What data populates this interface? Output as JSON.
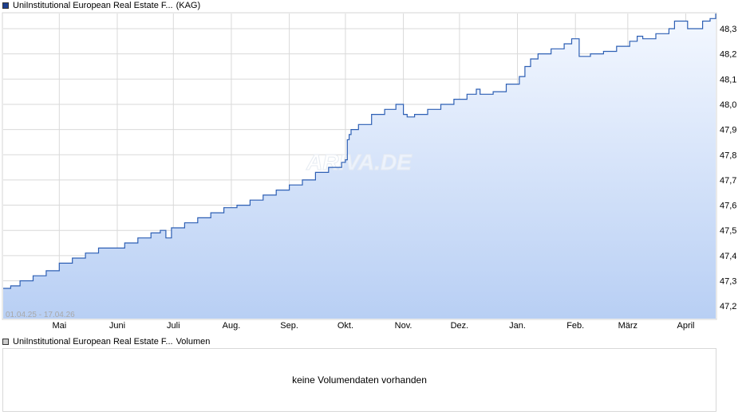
{
  "header": {
    "instrument_name": "UniInstitutional European Real Estate F...",
    "instrument_suffix": "(KAG)",
    "swatch_color": "#1d3f8f"
  },
  "volume_panel": {
    "instrument_name": "UniInstitutional European Real Estate F...",
    "label": "Volumen",
    "swatch_color": "#cccccc",
    "message": "keine Volumendaten vorhanden"
  },
  "watermark": "ARIVA.DE",
  "date_range_label": "01.04.25 - 17.04.26",
  "colors": {
    "line": "#2d5fb4",
    "fill_top": "#f4f8ff",
    "fill_bottom": "#b8cff4",
    "grid": "#d9d9d9"
  },
  "chart_data": {
    "type": "area",
    "grid": true,
    "x_range": [
      "2025-04-01",
      "2026-04-17"
    ],
    "ylim": [
      47.15,
      48.36
    ],
    "y_ticks": [
      47.2,
      47.3,
      47.4,
      47.5,
      47.6,
      47.7,
      47.8,
      47.9,
      48.0,
      48.1,
      48.2,
      48.3
    ],
    "y_tick_labels": [
      "47,2",
      "47,3",
      "47,4",
      "47,5",
      "47,6",
      "47,7",
      "47,8",
      "47,9",
      "48,0",
      "48,1",
      "48,2",
      "48,3"
    ],
    "x_ticks": [
      {
        "date": "2025-05-01",
        "label": "Mai"
      },
      {
        "date": "2025-06-01",
        "label": "Juni"
      },
      {
        "date": "2025-07-01",
        "label": "Juli"
      },
      {
        "date": "2025-08-01",
        "label": "Aug."
      },
      {
        "date": "2025-09-01",
        "label": "Sep."
      },
      {
        "date": "2025-10-01",
        "label": "Okt."
      },
      {
        "date": "2025-11-01",
        "label": "Nov."
      },
      {
        "date": "2025-12-01",
        "label": "Dez."
      },
      {
        "date": "2026-01-01",
        "label": "Jan."
      },
      {
        "date": "2026-02-01",
        "label": "Feb."
      },
      {
        "date": "2026-03-01",
        "label": "März"
      },
      {
        "date": "2026-04-01",
        "label": "April"
      }
    ],
    "series": [
      {
        "points": [
          [
            "2025-04-01",
            47.27
          ],
          [
            "2025-04-05",
            47.28
          ],
          [
            "2025-04-10",
            47.3
          ],
          [
            "2025-04-17",
            47.32
          ],
          [
            "2025-04-24",
            47.34
          ],
          [
            "2025-05-01",
            47.37
          ],
          [
            "2025-05-08",
            47.39
          ],
          [
            "2025-05-15",
            47.41
          ],
          [
            "2025-05-22",
            47.43
          ],
          [
            "2025-05-29",
            47.43
          ],
          [
            "2025-06-05",
            47.45
          ],
          [
            "2025-06-12",
            47.47
          ],
          [
            "2025-06-19",
            47.49
          ],
          [
            "2025-06-24",
            47.5
          ],
          [
            "2025-06-27",
            47.47
          ],
          [
            "2025-06-30",
            47.51
          ],
          [
            "2025-07-07",
            47.53
          ],
          [
            "2025-07-14",
            47.55
          ],
          [
            "2025-07-21",
            47.57
          ],
          [
            "2025-07-28",
            47.59
          ],
          [
            "2025-08-04",
            47.6
          ],
          [
            "2025-08-11",
            47.62
          ],
          [
            "2025-08-18",
            47.64
          ],
          [
            "2025-08-25",
            47.66
          ],
          [
            "2025-09-01",
            47.68
          ],
          [
            "2025-09-08",
            47.7
          ],
          [
            "2025-09-15",
            47.73
          ],
          [
            "2025-09-22",
            47.75
          ],
          [
            "2025-09-29",
            47.77
          ],
          [
            "2025-10-01",
            47.78
          ],
          [
            "2025-10-02",
            47.86
          ],
          [
            "2025-10-03",
            47.88
          ],
          [
            "2025-10-04",
            47.9
          ],
          [
            "2025-10-08",
            47.92
          ],
          [
            "2025-10-15",
            47.96
          ],
          [
            "2025-10-22",
            47.98
          ],
          [
            "2025-10-28",
            48.0
          ],
          [
            "2025-10-31",
            48.0
          ],
          [
            "2025-11-01",
            47.96
          ],
          [
            "2025-11-03",
            47.95
          ],
          [
            "2025-11-07",
            47.96
          ],
          [
            "2025-11-14",
            47.98
          ],
          [
            "2025-11-21",
            48.0
          ],
          [
            "2025-11-28",
            48.02
          ],
          [
            "2025-12-05",
            48.04
          ],
          [
            "2025-12-10",
            48.06
          ],
          [
            "2025-12-12",
            48.04
          ],
          [
            "2025-12-19",
            48.05
          ],
          [
            "2025-12-26",
            48.08
          ],
          [
            "2026-01-02",
            48.11
          ],
          [
            "2026-01-05",
            48.15
          ],
          [
            "2026-01-08",
            48.18
          ],
          [
            "2026-01-12",
            48.2
          ],
          [
            "2026-01-19",
            48.22
          ],
          [
            "2026-01-26",
            48.24
          ],
          [
            "2026-01-30",
            48.26
          ],
          [
            "2026-02-02",
            48.26
          ],
          [
            "2026-02-03",
            48.19
          ],
          [
            "2026-02-06",
            48.19
          ],
          [
            "2026-02-09",
            48.2
          ],
          [
            "2026-02-16",
            48.21
          ],
          [
            "2026-02-23",
            48.23
          ],
          [
            "2026-03-02",
            48.25
          ],
          [
            "2026-03-06",
            48.27
          ],
          [
            "2026-03-09",
            48.26
          ],
          [
            "2026-03-16",
            48.28
          ],
          [
            "2026-03-23",
            48.3
          ],
          [
            "2026-03-26",
            48.33
          ],
          [
            "2026-04-01",
            48.33
          ],
          [
            "2026-04-02",
            48.3
          ],
          [
            "2026-04-08",
            48.3
          ],
          [
            "2026-04-10",
            48.33
          ],
          [
            "2026-04-14",
            48.34
          ],
          [
            "2026-04-17",
            48.36
          ]
        ]
      }
    ]
  }
}
